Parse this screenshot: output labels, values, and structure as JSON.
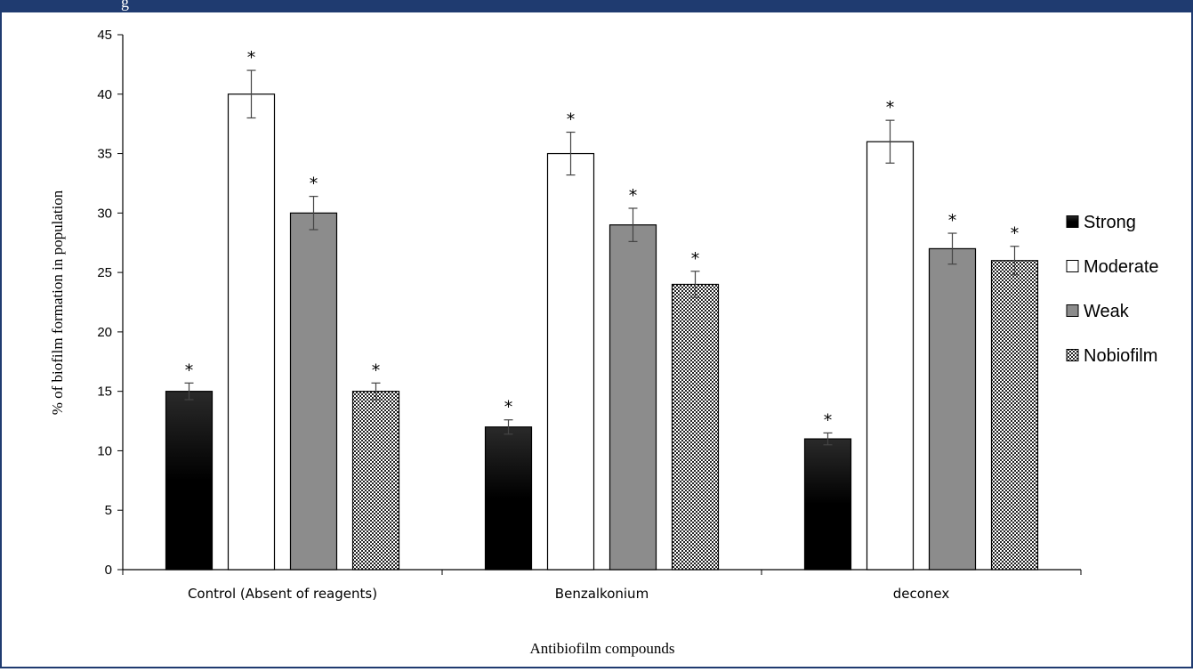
{
  "header": {
    "band_text": "g"
  },
  "chart_data": {
    "type": "bar",
    "title": "",
    "xlabel": "Antibiofilm compounds",
    "ylabel": "% of biofilm formation in population",
    "ylim": [
      0,
      45
    ],
    "yticks": [
      0,
      5,
      10,
      15,
      20,
      25,
      30,
      35,
      40,
      45
    ],
    "categories": [
      "Control (Absent of reagents)",
      "Benzalkonium",
      "deconex"
    ],
    "series": [
      {
        "name": "Strong",
        "values": [
          15,
          12,
          11
        ],
        "errors": [
          0.7,
          0.6,
          0.5
        ],
        "fill": "gradient-black"
      },
      {
        "name": "Moderate",
        "values": [
          40,
          35,
          36
        ],
        "errors": [
          2.0,
          1.8,
          1.8
        ],
        "fill": "#ffffff"
      },
      {
        "name": "Weak",
        "values": [
          30,
          29,
          27
        ],
        "errors": [
          1.4,
          1.4,
          1.3
        ],
        "fill": "#8c8c8c"
      },
      {
        "name": "Nobiofilm",
        "values": [
          15,
          24,
          26
        ],
        "errors": [
          0.7,
          1.1,
          1.2
        ],
        "fill": "checker"
      }
    ],
    "significance_marker": "*",
    "legend_position": "right",
    "grid": false
  }
}
